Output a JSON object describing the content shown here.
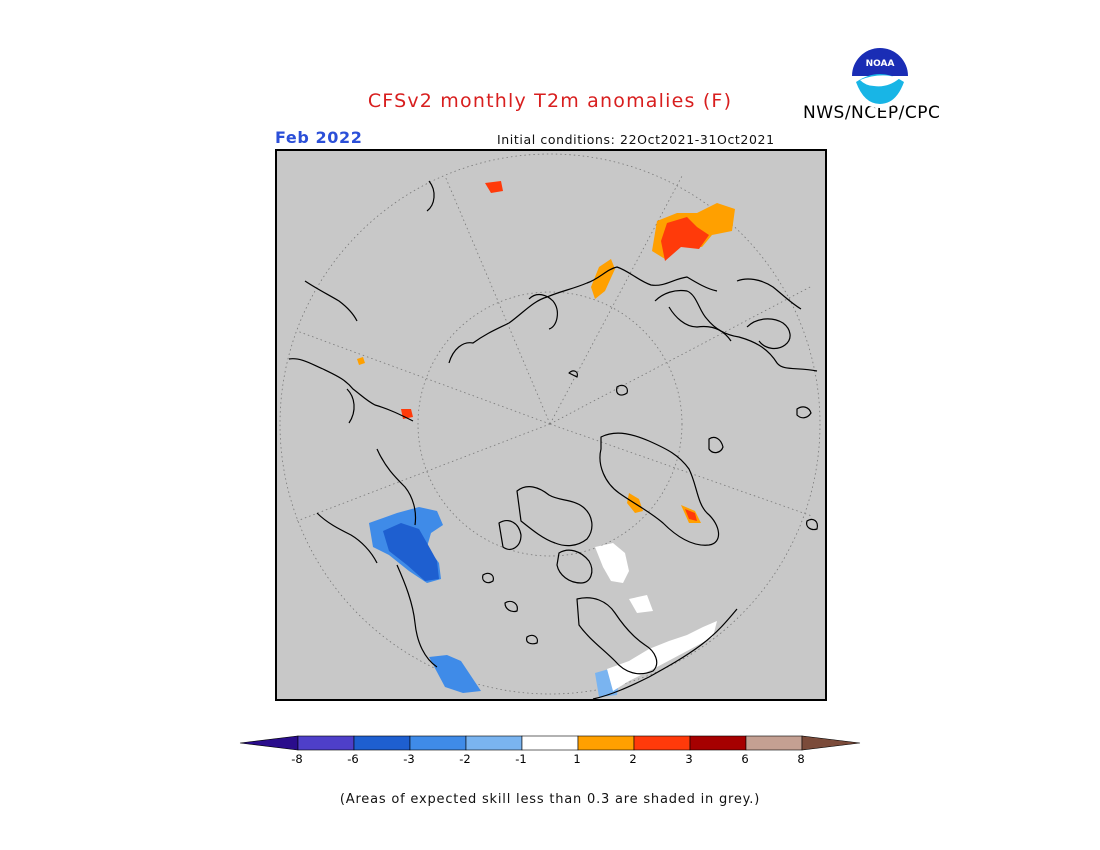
{
  "header": {
    "title": "CFSv2 monthly T2m anomalies (F)",
    "month": "Feb 2022",
    "initial_conditions": "Initial conditions: 22Oct2021-31Oct2021",
    "agency": "NWS/NCEP/CPC",
    "logo_text": "NOAA"
  },
  "map": {
    "projection": "north-polar-stereographic",
    "background_color": "#c8c8c8",
    "coastline_color": "#000000",
    "graticule_style": "dotted"
  },
  "colorbar": {
    "colors": [
      "#2a0d8c",
      "#4e3fc9",
      "#1e5fd0",
      "#3f8be8",
      "#7ab4f0",
      "#ffffff",
      "#ffa000",
      "#ff3a0a",
      "#a60000",
      "#c4a092",
      "#7b4b3a"
    ],
    "tick_labels": [
      "-8",
      "-6",
      "-3",
      "-2",
      "-1",
      "1",
      "2",
      "3",
      "6",
      "8"
    ]
  },
  "legend_note": "(Areas of expected skill less than 0.3 are shaded in grey.)"
}
